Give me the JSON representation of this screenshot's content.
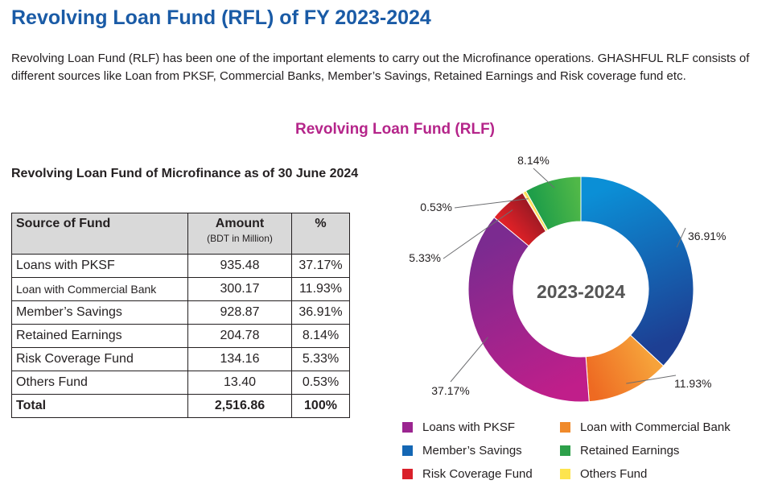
{
  "page": {
    "title": "Revolving Loan Fund (RFL) of FY 2023-2024",
    "intro": "Revolving Loan Fund (RLF) has been one of the important elements to carry out the Microfinance operations. GHASHFUL RLF consists of different sources like Loan from PKSF, Commercial Banks, Member’s Savings, Retained Earnings and Risk coverage fund etc."
  },
  "table": {
    "title": "Revolving Loan Fund of Microfinance as of 30 June 2024",
    "headers": {
      "source": "Source of Fund",
      "amount": "Amount",
      "amount_unit": "(BDT in Million)",
      "percent": "%"
    },
    "rows": [
      {
        "source": "Loans with PKSF",
        "amount": "935.48",
        "percent": "37.17%"
      },
      {
        "source": "Loan with Commercial Bank",
        "amount": "300.17",
        "percent": "11.93%"
      },
      {
        "source": "Member’s Savings",
        "amount": "928.87",
        "percent": "36.91%"
      },
      {
        "source": "Retained Earnings",
        "amount": "204.78",
        "percent": "8.14%"
      },
      {
        "source": "Risk Coverage Fund",
        "amount": "134.16",
        "percent": "5.33%"
      },
      {
        "source": "Others Fund",
        "amount": "13.40",
        "percent": "0.53%"
      }
    ],
    "total": {
      "source": "Total",
      "amount": "2,516.86",
      "percent": "100%"
    }
  },
  "chart_data": {
    "type": "pie",
    "title": "Revolving Loan Fund (RLF)",
    "center_label": "2023-2024",
    "slices": [
      {
        "name": "Member’s Savings",
        "value": 36.91,
        "label": "36.91%",
        "color_start": "#0b8fd6",
        "color_end": "#1d3f93"
      },
      {
        "name": "Loan with Commercial Bank",
        "value": 11.93,
        "label": "11.93%",
        "color_start": "#f6a23a",
        "color_end": "#ee6a22"
      },
      {
        "name": "Loans with PKSF",
        "value": 37.17,
        "label": "37.17%",
        "color_start": "#c01e8a",
        "color_end": "#7b2b90"
      },
      {
        "name": "Risk Coverage Fund",
        "value": 5.33,
        "label": "5.33%",
        "color_start": "#e02127",
        "color_end": "#9f1a24"
      },
      {
        "name": "Others Fund",
        "value": 0.53,
        "label": "0.53%",
        "color_start": "#fff5a0",
        "color_end": "#fbcf26"
      },
      {
        "name": "Retained Earnings",
        "value": 8.14,
        "label": "8.14%",
        "color_start": "#1f9e49",
        "color_end": "#50b848"
      }
    ],
    "legend": [
      {
        "name": "Loans with PKSF",
        "color": "#9b2590"
      },
      {
        "name": "Loan with Commercial Bank",
        "color": "#f08a2b"
      },
      {
        "name": "Member’s Savings",
        "color": "#1467b4"
      },
      {
        "name": "Retained Earnings",
        "color": "#2da04a"
      },
      {
        "name": "Risk Coverage Fund",
        "color": "#d9202a"
      },
      {
        "name": "Others Fund",
        "color": "#fde44e"
      }
    ]
  }
}
